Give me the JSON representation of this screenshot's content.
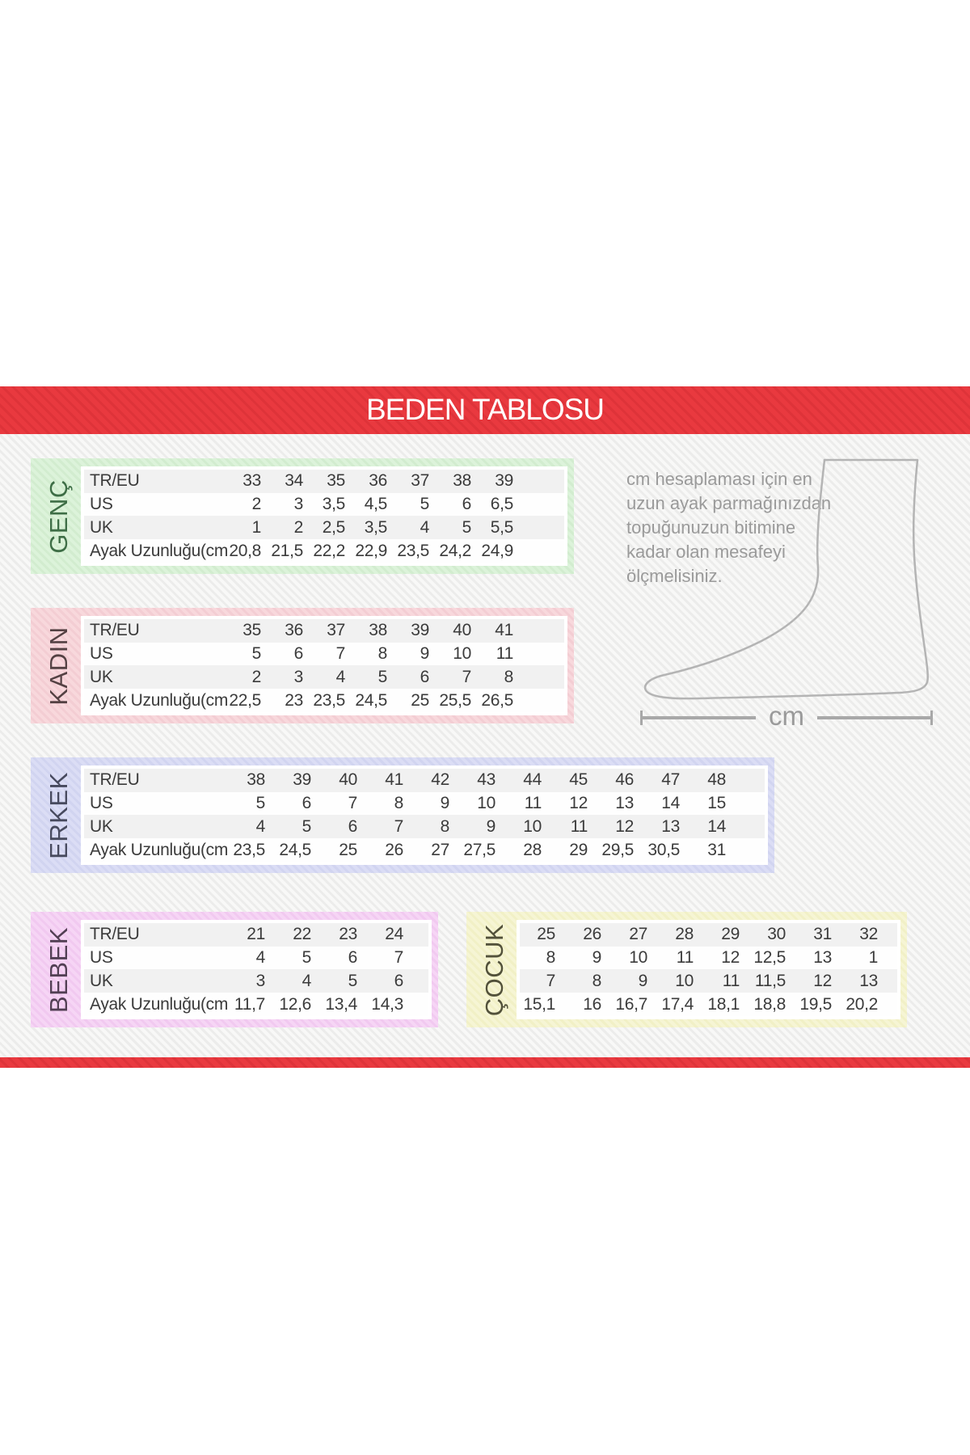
{
  "page": {
    "title": "BEDEN TABLOSU",
    "unit_label": "cm"
  },
  "colors": {
    "banner_red": "#e9393f",
    "content_stripe": "#ececeb",
    "row_alt_gray": "#f1f1f1",
    "table_text": "#3b3b3b",
    "note_gray": "#9a9a9a",
    "genc_tint": "#dcf3da",
    "genc_label": "#3e6e46",
    "kadin_tint": "#f8d8dc",
    "kadin_label": "#544143",
    "erkek_tint": "#dbddf5",
    "erkek_label": "#474a5e",
    "bebek_tint": "#f6d5f5",
    "bebek_label": "#523f54",
    "cocuk_tint": "#f6f5d4",
    "cocuk_label": "#52513a"
  },
  "note": {
    "lines": [
      "cm hesaplaması için en",
      "uzun ayak parmağınızdan",
      "topuğunuzun bitimine",
      "kadar olan mesafeyi",
      "ölçmelisiniz."
    ]
  },
  "tables": [
    {
      "id": "genc",
      "label": "GENÇ",
      "rows": [
        {
          "label": "TR/EU",
          "values": [
            "33",
            "34",
            "35",
            "36",
            "37",
            "38",
            "39"
          ]
        },
        {
          "label": "US",
          "values": [
            "2",
            "3",
            "3,5",
            "4,5",
            "5",
            "6",
            "6,5"
          ]
        },
        {
          "label": "UK",
          "values": [
            "1",
            "2",
            "2,5",
            "3,5",
            "4",
            "5",
            "5,5"
          ]
        },
        {
          "label": "Ayak Uzunluğu(cm)",
          "values": [
            "20,8",
            "21,5",
            "22,2",
            "22,9",
            "23,5",
            "24,2",
            "24,9"
          ]
        }
      ]
    },
    {
      "id": "kadin",
      "label": "KADIN",
      "rows": [
        {
          "label": "TR/EU",
          "values": [
            "35",
            "36",
            "37",
            "38",
            "39",
            "40",
            "41"
          ]
        },
        {
          "label": "US",
          "values": [
            "5",
            "6",
            "7",
            "8",
            "9",
            "10",
            "11"
          ]
        },
        {
          "label": "UK",
          "values": [
            "2",
            "3",
            "4",
            "5",
            "6",
            "7",
            "8"
          ]
        },
        {
          "label": "Ayak Uzunluğu(cm)",
          "values": [
            "22,5",
            "23",
            "23,5",
            "24,5",
            "25",
            "25,5",
            "26,5"
          ]
        }
      ]
    },
    {
      "id": "erkek",
      "label": "ERKEK",
      "rows": [
        {
          "label": "TR/EU",
          "values": [
            "38",
            "39",
            "40",
            "41",
            "42",
            "43",
            "44",
            "45",
            "46",
            "47",
            "48"
          ]
        },
        {
          "label": "US",
          "values": [
            "5",
            "6",
            "7",
            "8",
            "9",
            "10",
            "11",
            "12",
            "13",
            "14",
            "15"
          ]
        },
        {
          "label": "UK",
          "values": [
            "4",
            "5",
            "6",
            "7",
            "8",
            "9",
            "10",
            "11",
            "12",
            "13",
            "14"
          ]
        },
        {
          "label": "Ayak Uzunluğu(cm)",
          "values": [
            "23,5",
            "24,5",
            "25",
            "26",
            "27",
            "27,5",
            "28",
            "29",
            "29,5",
            "30,5",
            "31"
          ]
        }
      ]
    },
    {
      "id": "bebek",
      "label": "BEBEK",
      "rows": [
        {
          "label": "TR/EU",
          "values": [
            "21",
            "22",
            "23",
            "24"
          ]
        },
        {
          "label": "US",
          "values": [
            "4",
            "5",
            "6",
            "7"
          ]
        },
        {
          "label": "UK",
          "values": [
            "3",
            "4",
            "5",
            "6"
          ]
        },
        {
          "label": "Ayak Uzunluğu(cm)",
          "values": [
            "11,7",
            "12,6",
            "13,4",
            "14,3"
          ]
        }
      ]
    },
    {
      "id": "cocuk",
      "label": "ÇOCUK",
      "rows": [
        {
          "label": "",
          "values": [
            "25",
            "26",
            "27",
            "28",
            "29",
            "30",
            "31",
            "32"
          ]
        },
        {
          "label": "",
          "values": [
            "8",
            "9",
            "10",
            "11",
            "12",
            "12,5",
            "13",
            "1"
          ]
        },
        {
          "label": "",
          "values": [
            "7",
            "8",
            "9",
            "10",
            "11",
            "11,5",
            "12",
            "13"
          ]
        },
        {
          "label": "",
          "values": [
            "15,1",
            "16",
            "16,7",
            "17,4",
            "18,1",
            "18,8",
            "19,5",
            "20,2"
          ]
        }
      ]
    }
  ]
}
